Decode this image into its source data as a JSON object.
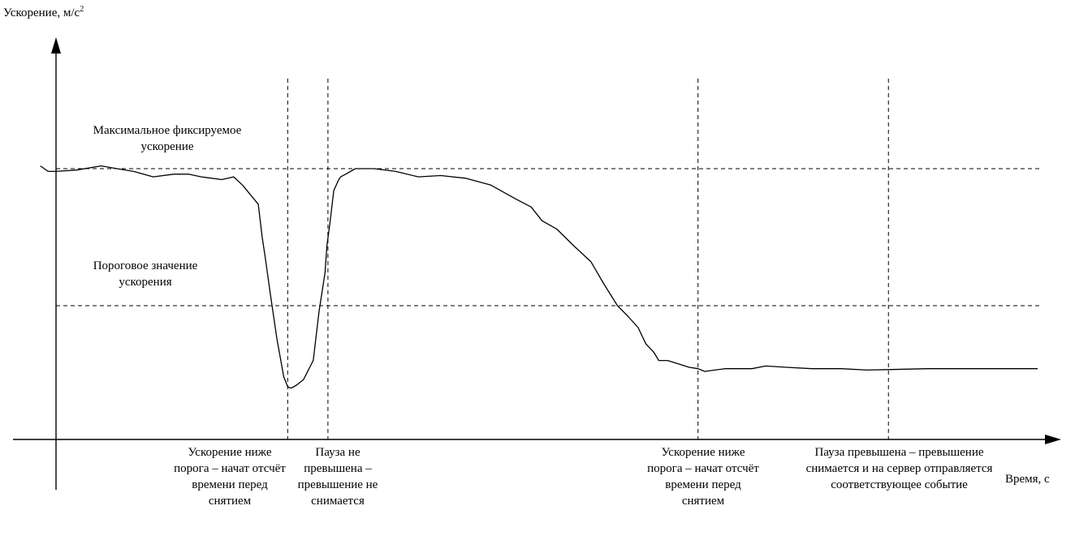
{
  "chart_data": {
    "type": "line",
    "ylabel": "Ускорение, м/с",
    "ylabel_sup": "2",
    "xlabel": "Время, с",
    "reference_lines": [
      {
        "id": "max",
        "label": "Максимальное фиксируемое ускорение",
        "y": 1.0
      },
      {
        "id": "threshold",
        "label": "Пороговое значение ускорения",
        "y": 0.5
      }
    ],
    "markers": [
      {
        "x": 0.236,
        "text": "Ускорение ниже порога – начат отсчёт времени перед снятием"
      },
      {
        "x": 0.277,
        "text": "Пауза не превышена – превышение не снимается"
      },
      {
        "x": 0.654,
        "text": "Ускорение ниже порога – начат отсчёт времени перед снятием"
      },
      {
        "x": 0.848,
        "text": "Пауза превышена – превышение снимается и на сервер отправляется соответствующее событие"
      }
    ],
    "series": [
      {
        "x": [
          -0.016,
          -0.008,
          0,
          0.021,
          0.046,
          0.062,
          0.079,
          0.099,
          0.12,
          0.135,
          0.148,
          0.169,
          0.181,
          0.19,
          0.206,
          0.21,
          0.213,
          0.218,
          0.225,
          0.232,
          0.236,
          0.238,
          0.24,
          0.245,
          0.252,
          0.262,
          0.268,
          0.274,
          0.276,
          0.279,
          0.281,
          0.283,
          0.288,
          0.29,
          0.295,
          0.305,
          0.324,
          0.346,
          0.369,
          0.392,
          0.417,
          0.443,
          0.468,
          0.484,
          0.495,
          0.51,
          0.527,
          0.545,
          0.558,
          0.572,
          0.583,
          0.593,
          0.601,
          0.609,
          0.614,
          0.623,
          0.632,
          0.645,
          0.654,
          0.661,
          0.671,
          0.682,
          0.692,
          0.709,
          0.723,
          0.744,
          0.77,
          0.8,
          0.826,
          0.848,
          0.888,
          0.913,
          0.944,
          0.978,
          1.0
        ],
        "y": [
          1.01,
          0.99,
          0.99,
          0.995,
          1.01,
          1.0,
          0.99,
          0.97,
          0.98,
          0.98,
          0.97,
          0.96,
          0.97,
          0.94,
          0.87,
          0.75,
          0.68,
          0.55,
          0.38,
          0.24,
          0.205,
          0.2,
          0.2,
          0.21,
          0.23,
          0.3,
          0.48,
          0.62,
          0.72,
          0.8,
          0.86,
          0.92,
          0.96,
          0.97,
          0.98,
          1.0,
          1.0,
          0.99,
          0.97,
          0.975,
          0.965,
          0.94,
          0.89,
          0.86,
          0.81,
          0.78,
          0.72,
          0.66,
          0.58,
          0.5,
          0.46,
          0.42,
          0.36,
          0.33,
          0.3,
          0.3,
          0.29,
          0.275,
          0.27,
          0.26,
          0.265,
          0.27,
          0.27,
          0.27,
          0.28,
          0.275,
          0.27,
          0.27,
          0.265,
          0.267,
          0.27,
          0.27,
          0.27,
          0.27,
          0.27
        ]
      }
    ]
  }
}
